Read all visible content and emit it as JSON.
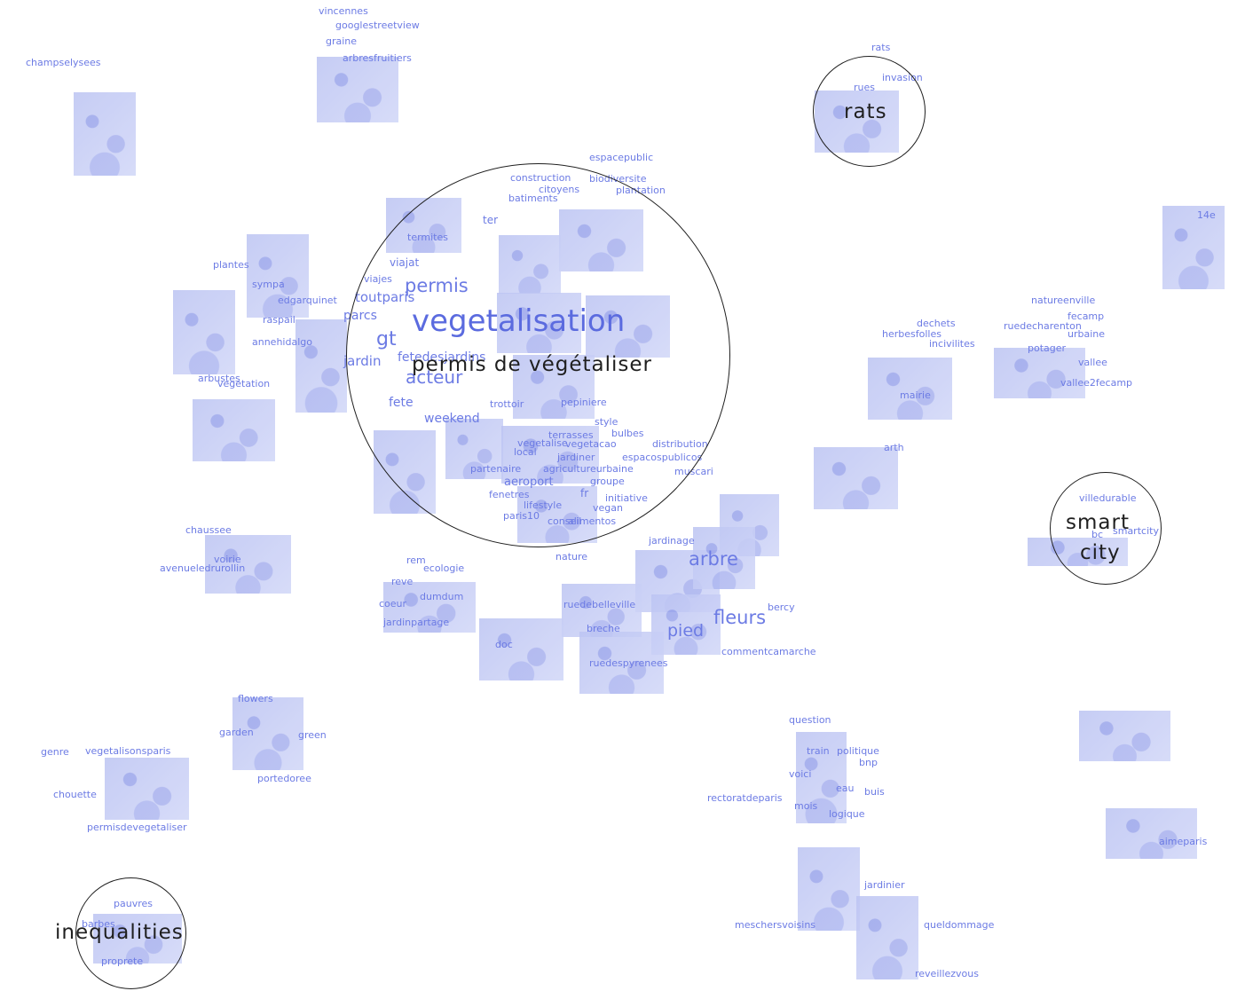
{
  "clusters": {
    "permis": "permis de végétaliser",
    "rats": "rats",
    "smartcity_line1": "smart",
    "smartcity_line2": "city",
    "inequalities": "inequalities"
  },
  "words": {
    "vincennes": "vincennes",
    "googlestreetview": "googlestreetview",
    "graine": "graine",
    "arbresfruitiers": "arbresfruitiers",
    "champselysees": "champselysees",
    "rats_tag": "rats",
    "invasion": "invasion",
    "rues": "rues",
    "espacepublic": "espacepublic",
    "construction": "construction",
    "biodiversite": "biodiversite",
    "citoyens": "citoyens",
    "plantation": "plantation",
    "batiments": "batiments",
    "ter": "ter",
    "termites": "termites",
    "viajat": "viajat",
    "viajes": "viajes",
    "permis": "permis",
    "toutparis": "toutparis",
    "parcs": "parcs",
    "vegetalisation": "vegetalisation",
    "gt": "gt",
    "jardin": "jardin",
    "fetedesjardins": "fetedesjardins",
    "acteur": "acteur",
    "fete": "fete",
    "trottoir": "trottoir",
    "pepiniere": "pepiniere",
    "weekend": "weekend",
    "style": "style",
    "terrasses": "terrasses",
    "bulbes": "bulbes",
    "vegetalise": "vegetalise",
    "vegetacao": "vegetacao",
    "distribution": "distribution",
    "local": "local",
    "jardiner": "jardiner",
    "espacospublicos": "espacospublicos",
    "partenaire": "partenaire",
    "agricultureurbaine": "agricultureurbaine",
    "muscari": "muscari",
    "aeroport": "aeroport",
    "groupe": "groupe",
    "fenetres": "fenetres",
    "fr": "fr",
    "initiative": "initiative",
    "lifestyle": "lifestyle",
    "vegan": "vegan",
    "paris10": "paris10",
    "conseil": "conseil",
    "alimentos": "alimentos",
    "plantes": "plantes",
    "sympa": "sympa",
    "edgarquinet": "edgarquinet",
    "raspail": "raspail",
    "annehidalgo": "annehidalgo",
    "arbustes": "arbustes",
    "vegetation": "vegetation",
    "tag_14e": "14e",
    "natureenville": "natureenville",
    "fecamp": "fecamp",
    "dechets": "dechets",
    "ruedecharenton": "ruedecharenton",
    "herbesfolles": "herbesfolles",
    "urbaine": "urbaine",
    "incivilites": "incivilites",
    "potager": "potager",
    "vallee": "vallee",
    "mairie": "mairie",
    "vallee2fecamp": "vallee2fecamp",
    "arth": "arth",
    "villedurable": "villedurable",
    "bc": "bc",
    "smartcity": "smartcity",
    "chaussee": "chaussee",
    "voirie": "voirie",
    "avenueledrurollin": "avenueledrurollin",
    "jardinage": "jardinage",
    "arbre": "arbre",
    "nature": "nature",
    "rem": "rem",
    "ecologie": "ecologie",
    "reve": "reve",
    "coeur": "coeur",
    "dumdum": "dumdum",
    "jardinpartage": "jardinpartage",
    "ruedebelleville": "ruedebelleville",
    "breche": "breche",
    "pied": "pied",
    "fleurs": "fleurs",
    "bercy": "bercy",
    "doc": "doc",
    "ruedespyrenees": "ruedespyrenees",
    "commentcamarche": "commentcamarche",
    "flowers": "flowers",
    "garden": "garden",
    "green": "green",
    "portedoree": "portedoree",
    "genre": "genre",
    "vegetalisonsparis": "vegetalisonsparis",
    "chouette": "chouette",
    "permisdevegetaliser": "permisdevegetaliser",
    "question": "question",
    "train": "train",
    "politique": "politique",
    "bnp": "bnp",
    "voici": "voici",
    "eau": "eau",
    "buis": "buis",
    "rectoratdeparis": "rectoratdeparis",
    "mois": "mois",
    "logique": "logique",
    "aimeparis": "aimeparis",
    "jardinier": "jardinier",
    "meschersvoisins": "meschersvoisins",
    "queldommage": "queldommage",
    "reveillezvous": "reveillezvous",
    "pauvres": "pauvres",
    "barbes": "barbes",
    "proprete": "proprete"
  },
  "colors": {
    "word": "#6c7be4",
    "thumbnail": "#d3d8f7",
    "cluster_ring": "#1f1f1f"
  }
}
